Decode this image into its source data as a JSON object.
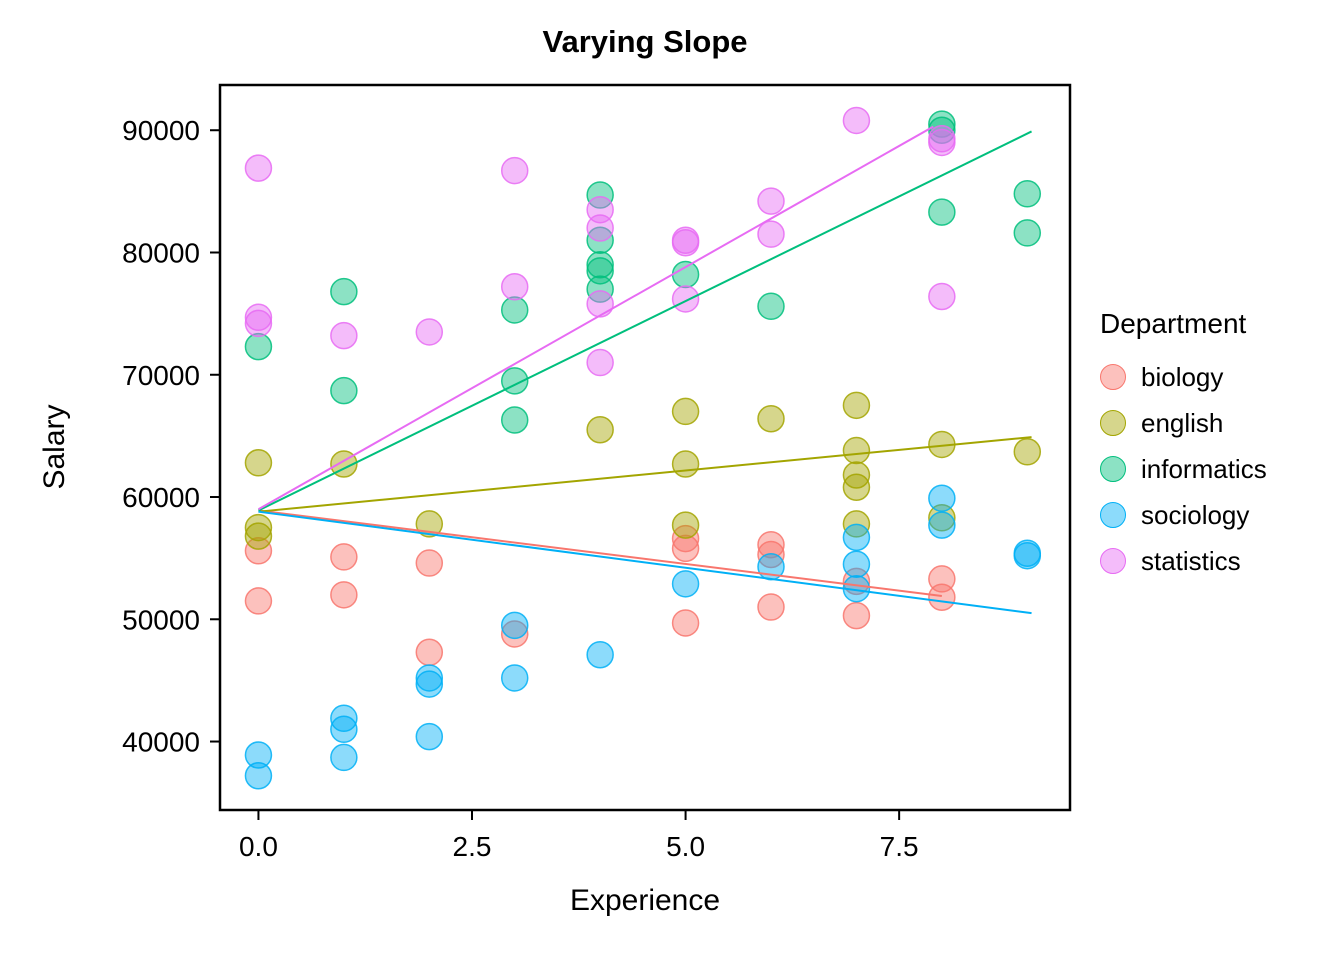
{
  "title": "Varying Slope",
  "legend": {
    "title": "Department",
    "items": [
      {
        "label": "biology",
        "color": "#F8766D"
      },
      {
        "label": "english",
        "color": "#A3A500"
      },
      {
        "label": "informatics",
        "color": "#00BF7D"
      },
      {
        "label": "sociology",
        "color": "#00B0F6"
      },
      {
        "label": "statistics",
        "color": "#E76BF3"
      }
    ]
  },
  "chart_data": {
    "type": "scatter",
    "title": "Varying Slope",
    "xlabel": "Experience",
    "ylabel": "Salary",
    "xlim": [
      -0.45,
      9.5
    ],
    "ylim": [
      34400,
      93700
    ],
    "x_ticks": [
      0.0,
      2.5,
      5.0,
      7.5
    ],
    "x_tick_labels": [
      "0.0",
      "2.5",
      "5.0",
      "7.5"
    ],
    "y_ticks": [
      40000,
      50000,
      60000,
      70000,
      80000,
      90000
    ],
    "y_tick_labels": [
      "40000",
      "50000",
      "60000",
      "70000",
      "80000",
      "90000"
    ],
    "grid": false,
    "legend_position": "right",
    "point_alpha": 0.45,
    "series": [
      {
        "name": "biology",
        "color": "#F8766D",
        "points": [
          [
            0,
            51500
          ],
          [
            0,
            55600
          ],
          [
            1,
            52000
          ],
          [
            1,
            55100
          ],
          [
            2,
            47300
          ],
          [
            2,
            54600
          ],
          [
            3,
            48800
          ],
          [
            5,
            49700
          ],
          [
            5,
            55800
          ],
          [
            5,
            56600
          ],
          [
            6,
            51000
          ],
          [
            6,
            55300
          ],
          [
            6,
            56100
          ],
          [
            7,
            50300
          ],
          [
            7,
            53100
          ],
          [
            8,
            51800
          ],
          [
            8,
            53300
          ]
        ]
      },
      {
        "name": "english",
        "color": "#A3A500",
        "points": [
          [
            0,
            56800
          ],
          [
            0,
            57500
          ],
          [
            0,
            62800
          ],
          [
            1,
            62700
          ],
          [
            2,
            57800
          ],
          [
            4,
            65500
          ],
          [
            5,
            57700
          ],
          [
            5,
            62700
          ],
          [
            5,
            67000
          ],
          [
            6,
            66400
          ],
          [
            7,
            57800
          ],
          [
            7,
            60800
          ],
          [
            7,
            61800
          ],
          [
            7,
            63800
          ],
          [
            7,
            67500
          ],
          [
            8,
            58300
          ],
          [
            8,
            64300
          ],
          [
            9,
            63700
          ]
        ]
      },
      {
        "name": "informatics",
        "color": "#00BF7D",
        "points": [
          [
            0,
            72300
          ],
          [
            1,
            68700
          ],
          [
            1,
            76800
          ],
          [
            3,
            66300
          ],
          [
            3,
            69500
          ],
          [
            3,
            75300
          ],
          [
            4,
            77000
          ],
          [
            4,
            78500
          ],
          [
            4,
            79000
          ],
          [
            4,
            81000
          ],
          [
            4,
            84700
          ],
          [
            5,
            78200
          ],
          [
            6,
            75600
          ],
          [
            8,
            83300
          ],
          [
            8,
            90000
          ],
          [
            8,
            90500
          ],
          [
            9,
            81600
          ],
          [
            9,
            84800
          ]
        ]
      },
      {
        "name": "sociology",
        "color": "#00B0F6",
        "points": [
          [
            0,
            37200
          ],
          [
            0,
            38900
          ],
          [
            1,
            38700
          ],
          [
            1,
            41000
          ],
          [
            1,
            41900
          ],
          [
            2,
            40400
          ],
          [
            2,
            44700
          ],
          [
            2,
            45200
          ],
          [
            3,
            45200
          ],
          [
            3,
            49500
          ],
          [
            4,
            47100
          ],
          [
            5,
            52900
          ],
          [
            6,
            54300
          ],
          [
            7,
            52500
          ],
          [
            7,
            54500
          ],
          [
            7,
            56700
          ],
          [
            8,
            57700
          ],
          [
            8,
            59900
          ],
          [
            9,
            55200
          ],
          [
            9,
            55400
          ]
        ]
      },
      {
        "name": "statistics",
        "color": "#E76BF3",
        "points": [
          [
            0,
            74200
          ],
          [
            0,
            74700
          ],
          [
            0,
            86900
          ],
          [
            1,
            73200
          ],
          [
            2,
            73500
          ],
          [
            3,
            77200
          ],
          [
            3,
            86700
          ],
          [
            4,
            71000
          ],
          [
            4,
            75800
          ],
          [
            4,
            82000
          ],
          [
            4,
            83500
          ],
          [
            5,
            76200
          ],
          [
            5,
            80800
          ],
          [
            5,
            81000
          ],
          [
            6,
            81500
          ],
          [
            6,
            84200
          ],
          [
            7,
            90800
          ],
          [
            8,
            76400
          ],
          [
            8,
            89000
          ],
          [
            8,
            89300
          ]
        ]
      }
    ],
    "lines": [
      {
        "series": "biology",
        "color": "#F8766D",
        "x": [
          0,
          8.0
        ],
        "y": [
          58900,
          51900
        ]
      },
      {
        "series": "english",
        "color": "#A3A500",
        "x": [
          0,
          9.05
        ],
        "y": [
          58800,
          64900
        ]
      },
      {
        "series": "informatics",
        "color": "#00BF7D",
        "x": [
          0,
          9.05
        ],
        "y": [
          58900,
          89900
        ]
      },
      {
        "series": "sociology",
        "color": "#00B0F6",
        "x": [
          0,
          9.05
        ],
        "y": [
          58800,
          50500
        ]
      },
      {
        "series": "statistics",
        "color": "#E76BF3",
        "x": [
          0,
          7.9
        ],
        "y": [
          59000,
          90300
        ]
      }
    ]
  }
}
